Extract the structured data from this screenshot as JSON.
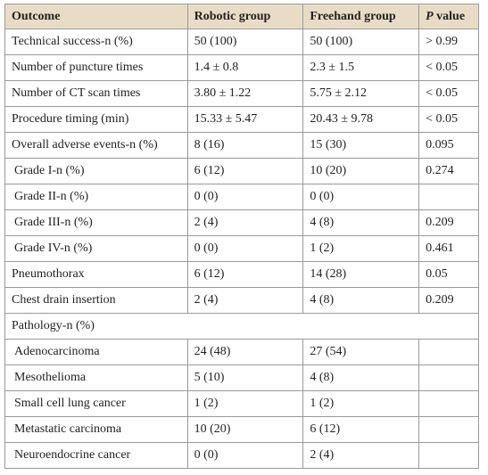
{
  "table": {
    "header": [
      "Outcome",
      "Robotic group",
      "Freehand group",
      "P value"
    ],
    "rows": [
      [
        "Technical success-n (%)",
        "50 (100)",
        "50 (100)",
        "> 0.99"
      ],
      [
        "Number of puncture times",
        "1.4 ± 0.8",
        "2.3 ± 1.5",
        "< 0.05"
      ],
      [
        "Number of CT scan times",
        "3.80 ± 1.22",
        "5.75 ± 2.12",
        "< 0.05"
      ],
      [
        "Procedure timing (min)",
        "15.33 ± 5.47",
        "20.43 ± 9.78",
        "< 0.05"
      ],
      [
        "Overall adverse events-n (%)",
        "8 (16)",
        "15 (30)",
        "0.095"
      ],
      [
        "Grade I-n (%)",
        "6 (12)",
        "10 (20)",
        "0.274"
      ],
      [
        "Grade II-n (%)",
        "0 (0)",
        "0 (0)",
        null
      ],
      [
        "Grade III-n (%)",
        "2 (4)",
        "4 (8)",
        "0.209"
      ],
      [
        "Grade IV-n (%)",
        "0 (0)",
        "1 (2)",
        "0.461"
      ],
      [
        "Pneumothorax",
        "6 (12)",
        "14 (28)",
        "0.05"
      ],
      [
        "Chest drain insertion",
        "2 (4)",
        "4 (8)",
        "0.209"
      ],
      [
        "Pathology-n (%)"
      ],
      [
        "Adenocarcinoma",
        "24 (48)",
        "27 (54)",
        null
      ],
      [
        "Mesothelioma",
        "5 (10)",
        "4 (8)",
        null
      ],
      [
        "Small cell lung cancer",
        "1 (2)",
        "1 (2)",
        null
      ],
      [
        "Metastatic carcinoma",
        "10 (20)",
        "6 (12)",
        null
      ],
      [
        "Neuroendocrine cancer",
        "0 (0)",
        "2 (4)",
        null
      ]
    ]
  }
}
